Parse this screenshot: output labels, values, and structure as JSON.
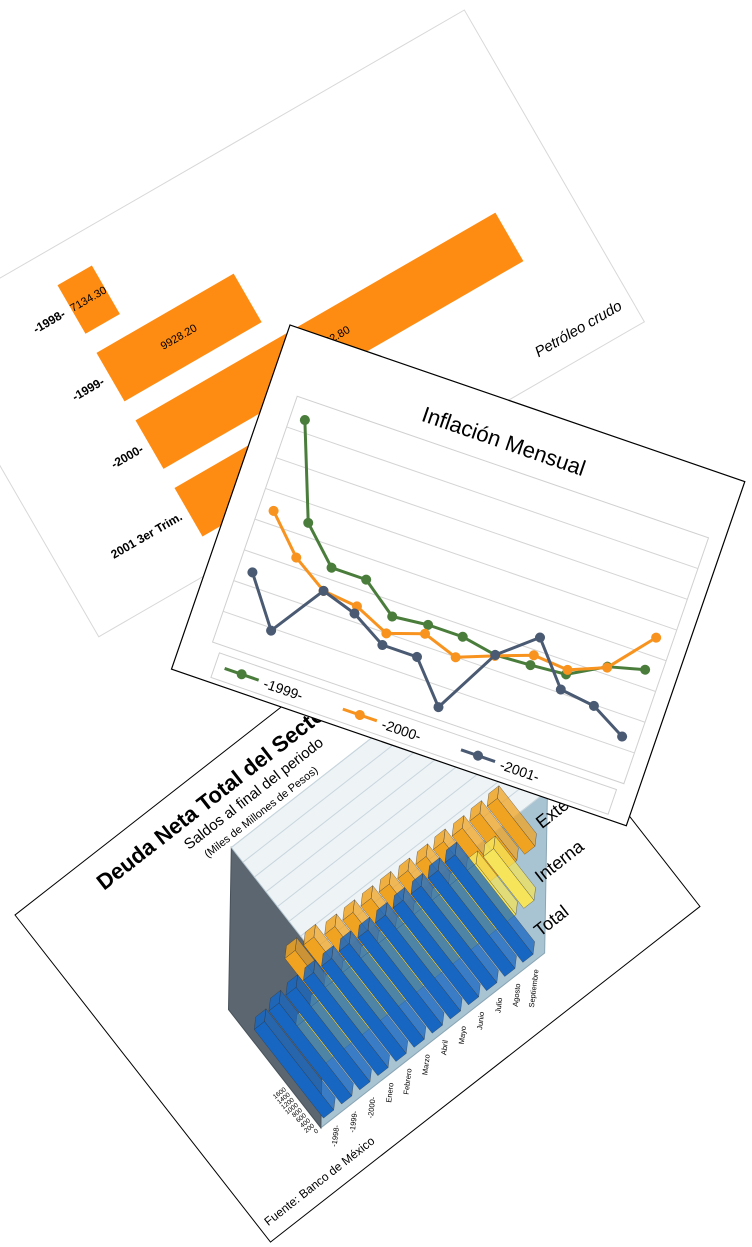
{
  "chart_data": [
    {
      "type": "hbar",
      "categories": [
        "-1998-",
        "-1999-",
        "-2000-",
        "2001 3er Trim."
      ],
      "values": [
        7134.3,
        9928.2,
        15982.8,
        12000
      ],
      "value_labels": [
        "7134.30",
        "9928.20",
        "15982.80",
        null
      ],
      "color": "#ff8c12",
      "xlim": [
        6200,
        17500
      ],
      "annotation": "Petróleo crudo"
    },
    {
      "type": "line",
      "title": "Inflación Mensual",
      "grid": true,
      "series": [
        {
          "name": "-1999-",
          "color": "#4a7d3c",
          "values": [
            2.53,
            1.51,
            1.14,
            1.14,
            0.86,
            0.9,
            0.9,
            0.83,
            0.85,
            0.88,
            1.1,
            1.2
          ]
        },
        {
          "name": "-2000-",
          "color": "#f7931e",
          "values": [
            1.51,
            1.12,
            0.88,
            0.84,
            0.67,
            0.8,
            0.67,
            0.82,
            0.96,
            0.93,
            1.09,
            1.56
          ]
        },
        {
          "name": "-2001-",
          "color": "#4a5a72",
          "values": [
            0.82,
            0.3,
            0.88,
            0.76,
            0.54,
            0.54,
            0.11,
            0.83,
            1.16,
            0.71,
            0.66,
            0.45
          ]
        }
      ]
    },
    {
      "type": "bar3d",
      "title": "Deuda Neta Total del Sector",
      "subtitle": "Saldos al final del periodo",
      "unit_label": "(Miles de Millones de Pesos)",
      "source": "Fuente: Banco de México",
      "categories": [
        "-1998-",
        "-1999-",
        "-2000-",
        "Enero",
        "Febrero",
        "Marzo",
        "Abril",
        "Mayo",
        "Junio",
        "Julio",
        "Agosto",
        "Septiembre"
      ],
      "series": [
        {
          "name": "Externa",
          "color": "#f0a321",
          "values": [
            700,
            690,
            640,
            640,
            640,
            640,
            630,
            630,
            640,
            630,
            640,
            650
          ]
        },
        {
          "name": "Interna",
          "color": "#f6e45a",
          "values": [
            500,
            570,
            640,
            650,
            650,
            660,
            660,
            670,
            670,
            680,
            690,
            700
          ]
        },
        {
          "name": "Total",
          "color": "#1666c2",
          "values": [
            1200,
            1260,
            1280,
            1290,
            1290,
            1300,
            1290,
            1300,
            1310,
            1310,
            1330,
            1350
          ]
        }
      ],
      "ylim": [
        0,
        1600
      ],
      "yticks": [
        0,
        200,
        400,
        600,
        800,
        1000,
        1200,
        1400,
        1600
      ]
    }
  ]
}
